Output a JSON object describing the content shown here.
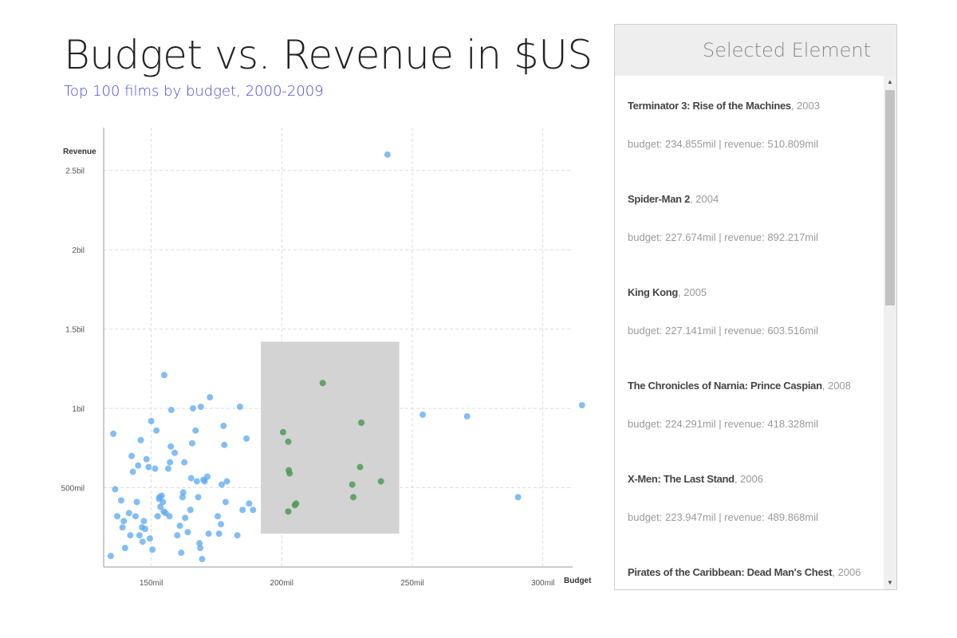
{
  "header": {
    "title": "Budget vs. Revenue in $US",
    "subtitle": "Top 100 films by budget, 2000-2009"
  },
  "colors": {
    "point": "#5aa8ef",
    "selected_point": "#4f9a55",
    "brush": "#d3d3d3",
    "grid": "#dddddd",
    "subtitle": "#4a4ad8"
  },
  "chart_data": {
    "type": "scatter",
    "title": "Budget vs. Revenue in $US",
    "subtitle": "Top 100 films by budget, 2000-2009",
    "xlabel": "Budget",
    "ylabel": "Revenue",
    "xlim": [
      131.8,
      311.4
    ],
    "ylim": [
      0,
      2.77
    ],
    "x_unit": "mil",
    "y_unit": "bil",
    "x_ticks": [
      150,
      200,
      250,
      300
    ],
    "x_tick_labels": [
      "150mil",
      "200mil",
      "250mil",
      "300mil"
    ],
    "y_ticks": [
      0.5,
      1,
      1.5,
      2,
      2.5
    ],
    "y_tick_labels": [
      "500mil",
      "1bil",
      "1.5bil",
      "2bil",
      "2.5bil"
    ],
    "grid": true,
    "brush": {
      "x": [
        192,
        245
      ],
      "y": [
        0.21,
        1.42
      ]
    },
    "series": [
      {
        "selected": false,
        "points": [
          [
            134.5,
            0.07
          ],
          [
            135.5,
            0.84
          ],
          [
            136.2,
            0.49
          ],
          [
            137,
            0.32
          ],
          [
            138.5,
            0.42
          ],
          [
            139,
            0.25
          ],
          [
            139.5,
            0.29
          ],
          [
            140,
            0.12
          ],
          [
            141.5,
            0.34
          ],
          [
            142,
            0.2
          ],
          [
            142.5,
            0.7
          ],
          [
            143,
            0.6
          ],
          [
            144,
            0.32
          ],
          [
            144.5,
            0.41
          ],
          [
            145,
            0.64
          ],
          [
            145.5,
            0.2
          ],
          [
            146,
            0.8
          ],
          [
            146.5,
            0.25
          ],
          [
            146.7,
            0.16
          ],
          [
            147.2,
            0.29
          ],
          [
            147.7,
            0.24
          ],
          [
            148.2,
            0.68
          ],
          [
            149,
            0.63
          ],
          [
            149.5,
            0.18
          ],
          [
            150,
            0.92
          ],
          [
            150.5,
            0.11
          ],
          [
            151.5,
            0.62
          ],
          [
            152,
            0.86
          ],
          [
            152.5,
            0.32
          ],
          [
            153,
            0.43
          ],
          [
            153.2,
            0.44
          ],
          [
            153.5,
            0.38
          ],
          [
            154,
            0.45
          ],
          [
            154.5,
            0.41
          ],
          [
            154.8,
            0.35
          ],
          [
            155,
            1.21
          ],
          [
            155.5,
            0.34
          ],
          [
            156.5,
            0.62
          ],
          [
            157,
            0.32
          ],
          [
            157.2,
            0.66
          ],
          [
            157.5,
            0.76
          ],
          [
            157.7,
            0.99
          ],
          [
            159,
            0.72
          ],
          [
            160,
            0.2
          ],
          [
            161,
            0.26
          ],
          [
            161.5,
            0.09
          ],
          [
            162,
            0.44
          ],
          [
            162.3,
            0.47
          ],
          [
            162.7,
            0.66
          ],
          [
            163,
            0.31
          ],
          [
            164,
            0.22
          ],
          [
            165,
            0.36
          ],
          [
            165.3,
            0.56
          ],
          [
            165.7,
            0.78
          ],
          [
            166,
            1
          ],
          [
            167,
            0.86
          ],
          [
            167.5,
            0.54
          ],
          [
            168,
            0.44
          ],
          [
            168.5,
            0.15
          ],
          [
            168.8,
            0.12
          ],
          [
            169,
            1.01
          ],
          [
            169.5,
            0.05
          ],
          [
            170,
            0.55
          ],
          [
            170.5,
            0.54
          ],
          [
            171.5,
            0.57
          ],
          [
            172,
            0.21
          ],
          [
            172.5,
            1.07
          ],
          [
            175.5,
            0.32
          ],
          [
            176,
            0.21
          ],
          [
            176.7,
            0.27
          ],
          [
            177,
            0.52
          ],
          [
            177.7,
            0.89
          ],
          [
            178,
            0.77
          ],
          [
            178.5,
            0.41
          ],
          [
            179,
            0.54
          ],
          [
            183,
            0.2
          ],
          [
            184,
            1.01
          ],
          [
            185,
            0.36
          ],
          [
            186.5,
            0.81
          ],
          [
            187.5,
            0.4
          ],
          [
            189,
            0.36
          ],
          [
            240.5,
            2.6
          ],
          [
            254,
            0.96
          ],
          [
            271,
            0.95
          ],
          [
            290.5,
            0.44
          ],
          [
            315,
            1.02
          ]
        ]
      },
      {
        "selected": true,
        "points": [
          [
            200.5,
            0.85
          ],
          [
            202.5,
            0.79
          ],
          [
            202.7,
            0.61
          ],
          [
            203,
            0.59
          ],
          [
            202.5,
            0.35
          ],
          [
            205,
            0.39
          ],
          [
            205.5,
            0.4
          ],
          [
            215.7,
            1.16
          ],
          [
            227,
            0.52
          ],
          [
            227.4,
            0.44
          ],
          [
            230,
            0.63
          ],
          [
            230.5,
            0.91
          ],
          [
            238,
            0.54
          ]
        ]
      }
    ]
  },
  "panel": {
    "title": "Selected Element",
    "items": [
      {
        "name": "Terminator 3: Rise of the Machines",
        "year": ", 2003",
        "stats": "budget: 234.855mil | revenue: 510.809mil"
      },
      {
        "name": "Spider-Man 2",
        "year": ", 2004",
        "stats": "budget: 227.674mil | revenue: 892.217mil"
      },
      {
        "name": "King Kong",
        "year": ", 2005",
        "stats": "budget: 227.141mil | revenue: 603.516mil"
      },
      {
        "name": "The Chronicles of Narnia: Prince Caspian",
        "year": ", 2008",
        "stats": "budget: 224.291mil | revenue: 418.328mil"
      },
      {
        "name": "X-Men: The Last Stand",
        "year": ", 2006",
        "stats": "budget: 223.947mil | revenue: 489.868mil"
      },
      {
        "name": "Pirates of the Caribbean: Dead Man's Chest",
        "year": ", 2006",
        "stats": ""
      }
    ],
    "scroll_up_icon": "triangle-up",
    "scroll_down_icon": "triangle-down"
  }
}
